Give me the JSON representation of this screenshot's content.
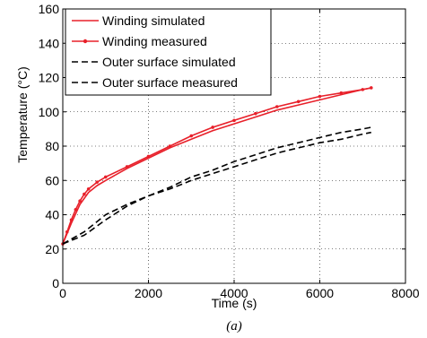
{
  "chart_data": {
    "type": "line",
    "xlabel": "Time (s)",
    "ylabel": "Temperature (°C)",
    "caption": "(a)",
    "xlim": [
      0,
      8000
    ],
    "ylim": [
      0,
      160
    ],
    "xticks": [
      0,
      2000,
      4000,
      6000,
      8000
    ],
    "yticks": [
      0,
      20,
      40,
      60,
      80,
      100,
      120,
      140,
      160
    ],
    "grid": "dotted",
    "legend_position": "top-left",
    "series": [
      {
        "name": "Winding simulated",
        "color": "#e8202a",
        "style": "solid",
        "marker": "none",
        "x": [
          0,
          200,
          400,
          600,
          800,
          1000,
          1500,
          2000,
          2500,
          3000,
          3500,
          4000,
          4500,
          5000,
          5500,
          6000,
          6500,
          7000,
          7200
        ],
        "y": [
          23,
          35,
          46,
          53,
          57,
          60,
          67,
          73,
          79,
          84,
          89,
          93,
          97,
          101,
          104,
          107,
          110,
          113,
          114
        ]
      },
      {
        "name": "Winding measured",
        "color": "#e8202a",
        "style": "solid",
        "marker": "dot",
        "x": [
          0,
          100,
          200,
          300,
          400,
          500,
          600,
          800,
          1000,
          1500,
          2000,
          2500,
          3000,
          3500,
          4000,
          4500,
          5000,
          5500,
          6000,
          6500,
          7000,
          7200
        ],
        "y": [
          23,
          30,
          37,
          43,
          48,
          52,
          55,
          59,
          62,
          68,
          74,
          80,
          86,
          91,
          95,
          99,
          103,
          106,
          109,
          111,
          113,
          114
        ]
      },
      {
        "name": "Outer surface simulated",
        "color": "#000000",
        "style": "dashed",
        "marker": "none",
        "x": [
          0,
          500,
          1000,
          1500,
          2000,
          2500,
          3000,
          3500,
          4000,
          4500,
          5000,
          5500,
          6000,
          6500,
          7000,
          7200
        ],
        "y": [
          23,
          28,
          37,
          45,
          51,
          56,
          62,
          66,
          71,
          75,
          79,
          82,
          85,
          88,
          90,
          91
        ]
      },
      {
        "name": "Outer surface measured",
        "color": "#000000",
        "style": "dashed",
        "marker": "none",
        "x": [
          0,
          500,
          1000,
          1500,
          2000,
          2500,
          3000,
          3500,
          4000,
          4500,
          5000,
          5500,
          6000,
          6500,
          7000,
          7200
        ],
        "y": [
          23,
          30,
          40,
          46,
          51,
          55,
          60,
          64,
          68,
          72,
          76,
          79,
          82,
          84,
          87,
          88
        ]
      }
    ]
  }
}
